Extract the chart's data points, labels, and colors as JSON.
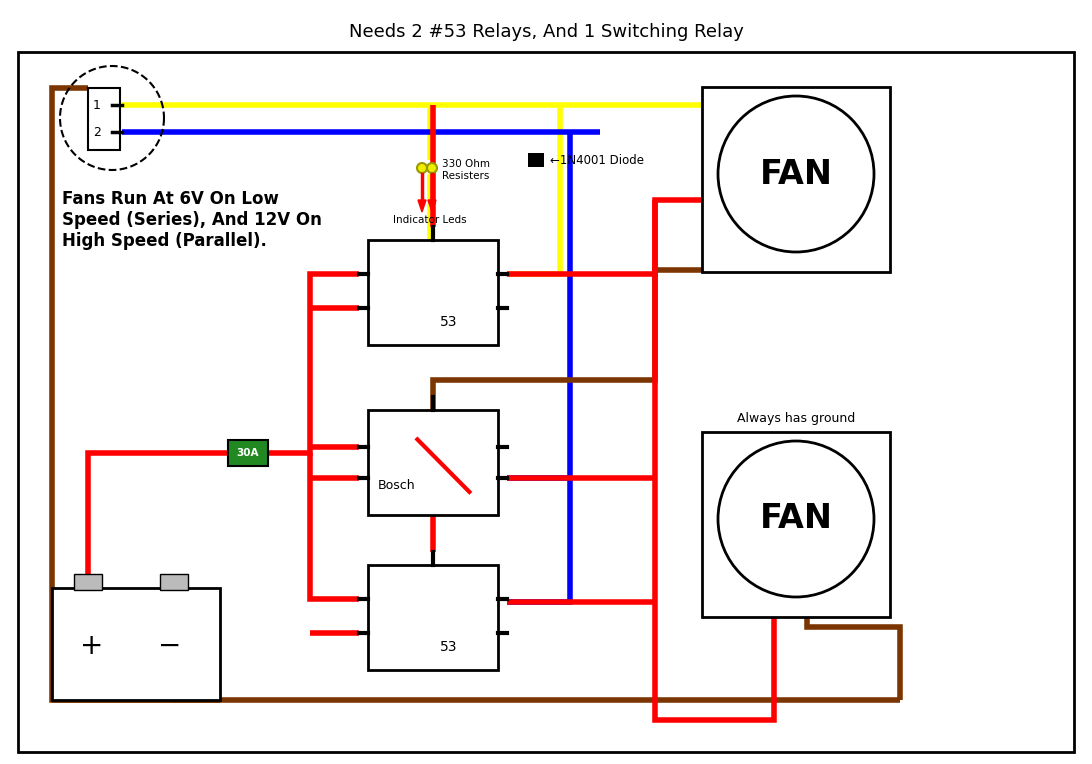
{
  "title": "Needs 2 #53 Relays, And 1 Switching Relay",
  "title_fontsize": 13,
  "bg_color": "#ffffff",
  "text_color": "#000000",
  "wire_red": "#ff0000",
  "wire_blue": "#0000ff",
  "wire_yellow": "#ffff00",
  "wire_brown": "#7b3500",
  "lw": 4,
  "label_left": "Fans Run At 6V On Low\nSpeed (Series), And 12V On\nHigh Speed (Parallel).",
  "label_always_ground": "Always has ground",
  "label_fan": "FAN",
  "label_bosch": "Bosch",
  "label_53": "53",
  "label_30a": "30A",
  "label_330": "330 Ohm\nResisters",
  "label_leds": "Indicator Leds",
  "label_diode": "←1N4001 Diode"
}
